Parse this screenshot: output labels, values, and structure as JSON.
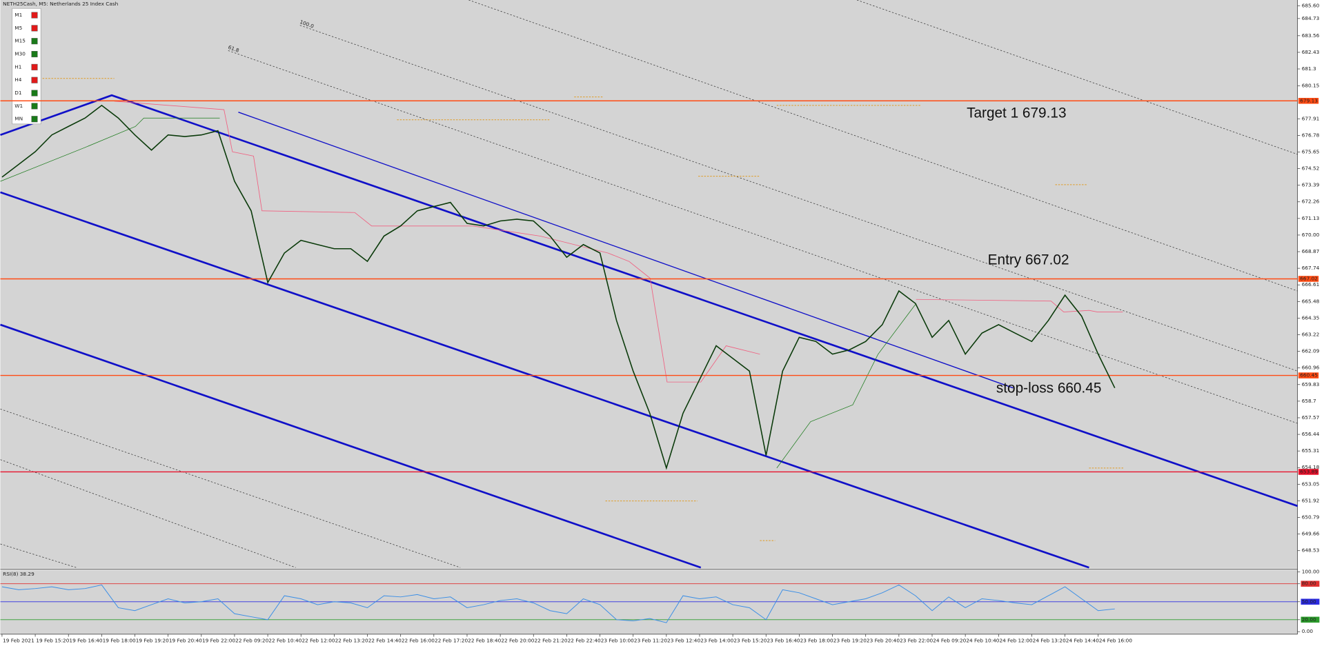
{
  "chart_data": [
    {
      "type": "line",
      "title": "NETH25Cash, M5: Netherlands 25 Index Cash",
      "color": "#0a3a0a",
      "x": [
        0,
        1,
        2,
        3,
        4,
        5,
        6,
        7,
        8,
        9,
        10,
        11,
        12,
        13,
        14,
        15,
        16,
        17,
        18,
        19,
        20,
        21,
        22,
        23,
        24,
        25,
        26,
        27,
        28,
        29,
        30,
        31,
        32,
        33,
        34,
        35,
        36,
        37,
        38,
        39,
        40,
        41,
        42,
        43,
        44,
        45,
        46,
        47,
        48,
        49,
        50,
        51,
        52,
        53,
        54,
        55,
        56,
        57,
        58,
        59,
        60,
        61,
        62,
        63,
        64,
        65,
        66,
        67
      ],
      "values": [
        673.94,
        674.8,
        675.67,
        676.81,
        677.39,
        677.96,
        678.82,
        677.96,
        676.81,
        675.78,
        676.81,
        676.7,
        676.81,
        677.1,
        673.66,
        671.65,
        666.77,
        668.78,
        669.64,
        669.35,
        669.07,
        669.07,
        668.21,
        669.93,
        670.62,
        671.65,
        671.94,
        672.22,
        670.79,
        670.62,
        670.96,
        671.08,
        670.96,
        669.93,
        668.49,
        669.35,
        668.78,
        664.19,
        660.75,
        657.88,
        654.15,
        657.88,
        660.17,
        662.47,
        661.61,
        660.75,
        655.01,
        660.75,
        663.04,
        662.76,
        661.9,
        662.18,
        662.76,
        663.9,
        666.2,
        665.34,
        663.04,
        664.19,
        661.9,
        663.33,
        663.9,
        663.33,
        662.76,
        664.19,
        665.91,
        664.48,
        661.9,
        659.6
      ],
      "xlim": [
        0,
        78
      ],
      "ylim": [
        647.38,
        685.99
      ],
      "xticks": [
        {
          "value": 0,
          "label": "19 Feb 2021"
        },
        {
          "value": 2,
          "label": "19 Feb 15:20"
        },
        {
          "value": 4,
          "label": "19 Feb 16:40"
        },
        {
          "value": 6,
          "label": "19 Feb 18:00"
        },
        {
          "value": 8,
          "label": "19 Feb 19:20"
        },
        {
          "value": 10,
          "label": "19 Feb 20:40"
        },
        {
          "value": 12,
          "label": "19 Feb 22:00"
        },
        {
          "value": 14,
          "label": "22 Feb 09:20"
        },
        {
          "value": 16,
          "label": "22 Feb 10:40"
        },
        {
          "value": 18,
          "label": "22 Feb 12:00"
        },
        {
          "value": 20,
          "label": "22 Feb 13:20"
        },
        {
          "value": 22,
          "label": "22 Feb 14:40"
        },
        {
          "value": 24,
          "label": "22 Feb 16:00"
        },
        {
          "value": 26,
          "label": "22 Feb 17:20"
        },
        {
          "value": 28,
          "label": "22 Feb 18:40"
        },
        {
          "value": 30,
          "label": "22 Feb 20:00"
        },
        {
          "value": 32,
          "label": "22 Feb 21:20"
        },
        {
          "value": 34,
          "label": "22 Feb 22:40"
        },
        {
          "value": 36,
          "label": "23 Feb 10:00"
        },
        {
          "value": 38,
          "label": "23 Feb 11:20"
        },
        {
          "value": 40,
          "label": "23 Feb 12:40"
        },
        {
          "value": 42,
          "label": "23 Feb 14:00"
        },
        {
          "value": 44,
          "label": "23 Feb 15:20"
        },
        {
          "value": 46,
          "label": "23 Feb 16:40"
        },
        {
          "value": 48,
          "label": "23 Feb 18:00"
        },
        {
          "value": 50,
          "label": "23 Feb 19:20"
        },
        {
          "value": 52,
          "label": "23 Feb 20:40"
        },
        {
          "value": 54,
          "label": "23 Feb 22:00"
        },
        {
          "value": 56,
          "label": "24 Feb 09:20"
        },
        {
          "value": 58,
          "label": "24 Feb 10:40"
        },
        {
          "value": 60,
          "label": "24 Feb 12:00"
        },
        {
          "value": 62,
          "label": "24 Feb 13:20"
        },
        {
          "value": 64,
          "label": "24 Feb 14:40"
        },
        {
          "value": 66,
          "label": "24 Feb 16:00"
        }
      ],
      "yticks": [
        {
          "value": 685.6,
          "label": "685.60"
        },
        684.73,
        683.56,
        682.43,
        681.3,
        680.15,
        677.91,
        676.78,
        675.65,
        674.52,
        673.39,
        672.26,
        671.13,
        {
          "value": 670,
          "label": "670.00"
        },
        668.87,
        667.74,
        666.61,
        665.48,
        664.35,
        663.22,
        662.09,
        660.96,
        659.83,
        658.7,
        657.57,
        656.44,
        655.31,
        654.18,
        653.05,
        651.92,
        650.79,
        649.66,
        648.53
      ],
      "levels": [
        {
          "value": 679.13,
          "color": "#ff4a12"
        },
        {
          "value": 667.02,
          "color": "#ff4a12"
        },
        {
          "value": 660.45,
          "color": "#ff4a12"
        },
        {
          "value": 653.89,
          "color": "#e8102a"
        }
      ],
      "annotations": [
        "Target 1 679.13",
        "Entry 667.02",
        "stop-loss 660.45"
      ],
      "fibo_labels": [
        "100.0",
        "61.8"
      ],
      "timeframes": [
        {
          "label": "M1",
          "color": "#e01b1b"
        },
        {
          "label": "M5",
          "color": "#e01b1b"
        },
        {
          "label": "M15",
          "color": "#1a7a1a"
        },
        {
          "label": "M30",
          "color": "#1a7a1a"
        },
        {
          "label": "H1",
          "color": "#e01b1b"
        },
        {
          "label": "H4",
          "color": "#e01b1b"
        },
        {
          "label": "D1",
          "color": "#1a7a1a"
        },
        {
          "label": "W1",
          "color": "#1a7a1a"
        },
        {
          "label": "MN",
          "color": "#1a7a1a"
        }
      ]
    },
    {
      "type": "line",
      "title": "RSI(8) 38.29",
      "color": "#3a8ee6",
      "x": [
        0,
        1,
        2,
        3,
        4,
        5,
        6,
        7,
        8,
        9,
        10,
        11,
        12,
        13,
        14,
        15,
        16,
        17,
        18,
        19,
        20,
        21,
        22,
        23,
        24,
        25,
        26,
        27,
        28,
        29,
        30,
        31,
        32,
        33,
        34,
        35,
        36,
        37,
        38,
        39,
        40,
        41,
        42,
        43,
        44,
        45,
        46,
        47,
        48,
        49,
        50,
        51,
        52,
        53,
        54,
        55,
        56,
        57,
        58,
        59,
        60,
        61,
        62,
        63,
        64,
        65,
        66,
        67
      ],
      "values": [
        75,
        70,
        72,
        75,
        70,
        72,
        78,
        40,
        35,
        45,
        55,
        48,
        50,
        55,
        30,
        25,
        20,
        60,
        55,
        45,
        50,
        48,
        40,
        60,
        58,
        62,
        55,
        58,
        40,
        45,
        52,
        55,
        48,
        35,
        30,
        55,
        45,
        20,
        18,
        22,
        15,
        60,
        55,
        58,
        45,
        40,
        20,
        70,
        65,
        55,
        45,
        50,
        55,
        65,
        78,
        60,
        35,
        58,
        40,
        55,
        52,
        48,
        45,
        60,
        75,
        55,
        35,
        38
      ],
      "xlim": [
        0,
        78
      ],
      "ylim": [
        0,
        100
      ],
      "yticks": [
        {
          "value": 100,
          "label": "100.00"
        },
        {
          "value": 80,
          "label": "80.00"
        },
        {
          "value": 50,
          "label": "50.00"
        },
        {
          "value": 20,
          "label": "20.00"
        },
        {
          "value": 0,
          "label": "0.00"
        }
      ],
      "levels": [
        {
          "value": 80,
          "color": "#e03030"
        },
        {
          "value": 50,
          "color": "#2a2ae0"
        },
        {
          "value": 20,
          "color": "#2a9a2a"
        }
      ]
    }
  ]
}
